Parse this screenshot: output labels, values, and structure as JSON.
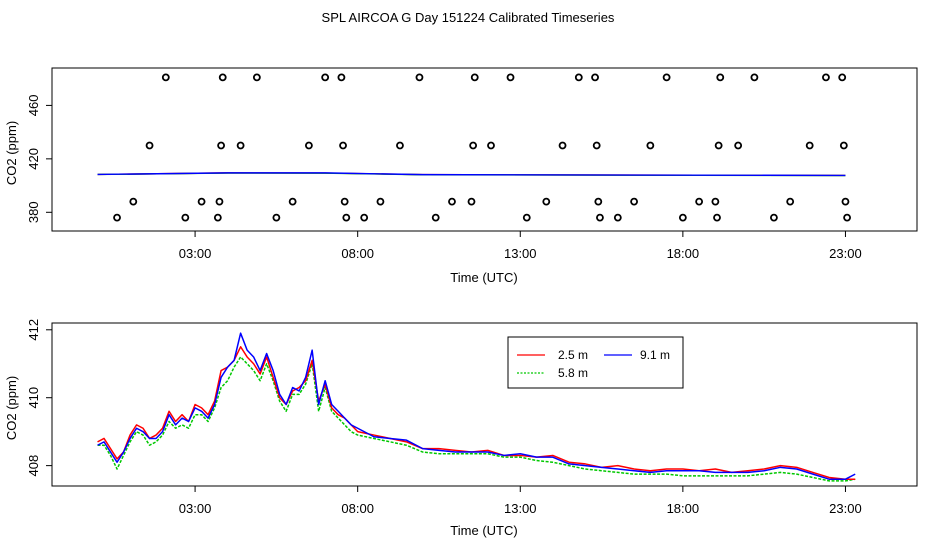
{
  "figure_title": "SPL AIRCOA G  Day 151224  Calibrated Timeseries",
  "chart_data": [
    {
      "type": "scatter",
      "xlabel": "Time (UTC)",
      "ylabel": "CO2 (ppm)",
      "xlim": [
        -1.4,
        25.2
      ],
      "ylim": [
        366,
        488
      ],
      "x_ticks": [
        3,
        8,
        13,
        18,
        23
      ],
      "x_tick_labels": [
        "03:00",
        "08:00",
        "13:00",
        "18:00",
        "23:00"
      ],
      "y_ticks": [
        380,
        420,
        460
      ],
      "y_tick_labels": [
        "380",
        "420",
        "460"
      ],
      "grid": false,
      "points": [
        [
          0.6,
          376
        ],
        [
          1.1,
          388
        ],
        [
          1.6,
          430
        ],
        [
          2.1,
          481
        ],
        [
          2.7,
          376
        ],
        [
          3.2,
          388
        ],
        [
          3.7,
          376
        ],
        [
          3.75,
          388
        ],
        [
          3.8,
          430
        ],
        [
          3.85,
          481
        ],
        [
          4.4,
          430
        ],
        [
          4.9,
          481
        ],
        [
          5.5,
          376
        ],
        [
          6.0,
          388
        ],
        [
          6.5,
          430
        ],
        [
          7.0,
          481
        ],
        [
          7.5,
          481
        ],
        [
          7.55,
          430
        ],
        [
          7.6,
          388
        ],
        [
          7.65,
          376
        ],
        [
          8.2,
          376
        ],
        [
          8.7,
          388
        ],
        [
          9.3,
          430
        ],
        [
          9.9,
          481
        ],
        [
          10.4,
          376
        ],
        [
          10.9,
          388
        ],
        [
          11.5,
          388
        ],
        [
          11.55,
          430
        ],
        [
          11.6,
          481
        ],
        [
          12.1,
          430
        ],
        [
          12.7,
          481
        ],
        [
          13.2,
          376
        ],
        [
          13.8,
          388
        ],
        [
          14.3,
          430
        ],
        [
          14.8,
          481
        ],
        [
          15.3,
          481
        ],
        [
          15.35,
          430
        ],
        [
          15.4,
          388
        ],
        [
          15.45,
          376
        ],
        [
          16.0,
          376
        ],
        [
          16.5,
          388
        ],
        [
          17.0,
          430
        ],
        [
          17.5,
          481
        ],
        [
          18.0,
          376
        ],
        [
          18.5,
          388
        ],
        [
          19.0,
          388
        ],
        [
          19.05,
          376
        ],
        [
          19.1,
          430
        ],
        [
          19.15,
          481
        ],
        [
          19.7,
          430
        ],
        [
          20.2,
          481
        ],
        [
          20.8,
          376
        ],
        [
          21.3,
          388
        ],
        [
          21.9,
          430
        ],
        [
          22.4,
          481
        ],
        [
          22.9,
          481
        ],
        [
          22.95,
          430
        ],
        [
          23.0,
          388
        ],
        [
          23.05,
          376
        ]
      ],
      "lines": [
        {
          "color": "#ff0000",
          "values": [
            [
              0,
              408.3
            ],
            [
              4,
              409.5
            ],
            [
              7,
              409.4
            ],
            [
              10,
              408.2
            ],
            [
              23,
              407.6
            ]
          ]
        },
        {
          "color": "#00c800",
          "values": [
            [
              0,
              408.3
            ],
            [
              4,
              409.4
            ],
            [
              7,
              409.3
            ],
            [
              10,
              408.1
            ],
            [
              23,
              407.5
            ]
          ]
        },
        {
          "color": "#0000ff",
          "values": [
            [
              0,
              408.3
            ],
            [
              4,
              409.5
            ],
            [
              7,
              409.5
            ],
            [
              10,
              408.2
            ],
            [
              23,
              407.6
            ]
          ]
        }
      ]
    },
    {
      "type": "line",
      "xlabel": "Time (UTC)",
      "ylabel": "CO2 (ppm)",
      "xlim": [
        -1.4,
        25.2
      ],
      "ylim": [
        407.4,
        412.2
      ],
      "x_ticks": [
        3,
        8,
        13,
        18,
        23
      ],
      "x_tick_labels": [
        "03:00",
        "08:00",
        "13:00",
        "18:00",
        "23:00"
      ],
      "y_ticks": [
        408,
        410,
        412
      ],
      "y_tick_labels": [
        "408",
        "410",
        "412"
      ],
      "grid": false,
      "legend": {
        "placement": "top-center",
        "entries": [
          {
            "label": "2.5 m",
            "color": "#ff0000"
          },
          {
            "label": "9.1 m",
            "color": "#0000ff"
          },
          {
            "label": "5.8 m",
            "color": "#00c800"
          }
        ]
      },
      "x": [
        0,
        0.2,
        0.4,
        0.6,
        0.8,
        1,
        1.2,
        1.4,
        1.6,
        1.8,
        2,
        2.2,
        2.4,
        2.6,
        2.8,
        3,
        3.2,
        3.4,
        3.6,
        3.8,
        4,
        4.2,
        4.4,
        4.6,
        4.8,
        5,
        5.2,
        5.4,
        5.6,
        5.8,
        6,
        6.2,
        6.4,
        6.6,
        6.8,
        7,
        7.2,
        7.4,
        7.6,
        7.8,
        8,
        8.5,
        9,
        9.5,
        10,
        10.5,
        11,
        11.5,
        12,
        12.5,
        13,
        13.5,
        14,
        14.5,
        15,
        15.5,
        16,
        16.5,
        17,
        17.5,
        18,
        18.5,
        19,
        19.5,
        20,
        20.5,
        21,
        21.5,
        22,
        22.5,
        23,
        23.3
      ],
      "series": [
        {
          "name": "2.5 m",
          "color": "#ff0000",
          "values": [
            408.7,
            408.8,
            408.5,
            408.2,
            408.4,
            408.9,
            409.2,
            409.1,
            408.8,
            408.9,
            409.1,
            409.6,
            409.3,
            409.5,
            409.3,
            409.8,
            409.7,
            409.5,
            409.9,
            410.8,
            410.9,
            411.1,
            411.5,
            411.2,
            411.0,
            410.7,
            411.2,
            410.6,
            410.0,
            409.8,
            410.2,
            410.3,
            410.5,
            411.1,
            409.9,
            410.4,
            409.7,
            409.5,
            409.4,
            409.2,
            409.0,
            408.9,
            408.8,
            408.7,
            408.5,
            408.5,
            408.45,
            408.4,
            408.45,
            408.3,
            408.3,
            408.25,
            408.3,
            408.1,
            408.05,
            407.95,
            408.0,
            407.9,
            407.85,
            407.9,
            407.9,
            407.85,
            407.9,
            407.8,
            407.85,
            407.9,
            408.0,
            407.95,
            407.8,
            407.65,
            407.6,
            407.6
          ]
        },
        {
          "name": "9.1 m",
          "color": "#0000ff",
          "values": [
            408.6,
            408.7,
            408.4,
            408.1,
            408.4,
            408.8,
            409.1,
            409.0,
            408.8,
            408.8,
            409.0,
            409.5,
            409.2,
            409.4,
            409.3,
            409.7,
            409.6,
            409.4,
            409.8,
            410.6,
            410.9,
            411.1,
            411.9,
            411.4,
            411.2,
            410.8,
            411.3,
            410.8,
            410.1,
            409.8,
            410.3,
            410.2,
            410.6,
            411.4,
            409.8,
            410.5,
            409.8,
            409.6,
            409.4,
            409.2,
            409.1,
            408.85,
            408.8,
            408.75,
            408.5,
            408.45,
            408.4,
            408.4,
            408.4,
            408.3,
            408.35,
            408.25,
            408.25,
            408.05,
            408.0,
            407.95,
            407.9,
            407.85,
            407.8,
            407.85,
            407.85,
            407.85,
            407.8,
            407.8,
            407.8,
            407.85,
            407.95,
            407.9,
            407.75,
            407.6,
            407.6,
            407.75
          ]
        },
        {
          "name": "5.8 m",
          "color": "#00c800",
          "values": [
            408.6,
            408.6,
            408.3,
            407.9,
            408.3,
            408.7,
            409.0,
            408.9,
            408.6,
            408.7,
            408.9,
            409.3,
            409.1,
            409.2,
            409.1,
            409.5,
            409.5,
            409.3,
            409.7,
            410.3,
            410.5,
            410.9,
            411.2,
            411.0,
            410.8,
            410.5,
            411.0,
            410.5,
            409.9,
            409.6,
            410.1,
            410.1,
            410.4,
            411.0,
            409.6,
            410.3,
            409.6,
            409.4,
            409.2,
            409.0,
            408.9,
            408.8,
            408.7,
            408.6,
            408.4,
            408.35,
            408.35,
            408.35,
            408.35,
            408.25,
            408.25,
            408.15,
            408.1,
            408.0,
            407.9,
            407.85,
            407.8,
            407.75,
            407.75,
            407.75,
            407.7,
            407.7,
            407.7,
            407.7,
            407.7,
            407.75,
            407.8,
            407.75,
            407.65,
            407.55,
            407.55,
            407.6
          ]
        }
      ]
    }
  ]
}
